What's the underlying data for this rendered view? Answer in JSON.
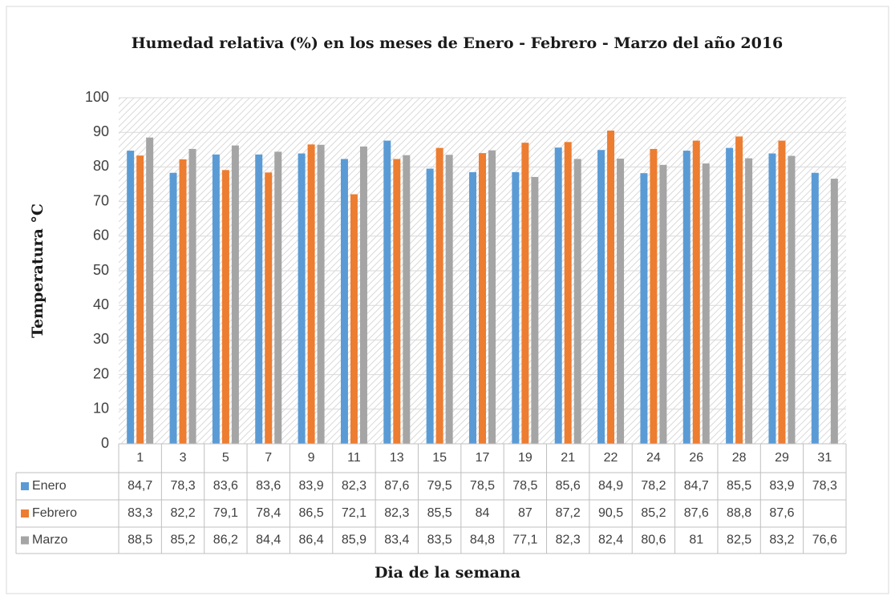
{
  "chart_data": {
    "type": "bar",
    "title": "Humedad relativa (%) en los meses de Enero - Febrero - Marzo del año 2016",
    "y_label": "Temperatura °C",
    "x_label": "Dia de la semana",
    "categories": [
      "1",
      "3",
      "5",
      "7",
      "9",
      "11",
      "13",
      "15",
      "17",
      "19",
      "21",
      "22",
      "24",
      "26",
      "28",
      "29",
      "31"
    ],
    "series": [
      {
        "name": "Enero",
        "color": "#5b9bd5",
        "values": [
          84.7,
          78.3,
          83.6,
          83.6,
          83.9,
          82.3,
          87.6,
          79.5,
          78.5,
          78.5,
          85.6,
          84.9,
          78.2,
          84.7,
          85.5,
          83.9,
          78.3
        ],
        "value_labels": [
          "84,7",
          "78,3",
          "83,6",
          "83,6",
          "83,9",
          "82,3",
          "87,6",
          "79,5",
          "78,5",
          "78,5",
          "85,6",
          "84,9",
          "78,2",
          "84,7",
          "85,5",
          "83,9",
          "78,3"
        ]
      },
      {
        "name": "Febrero",
        "color": "#ed7d31",
        "values": [
          83.3,
          82.2,
          79.1,
          78.4,
          86.5,
          72.1,
          82.3,
          85.5,
          84,
          87,
          87.2,
          90.5,
          85.2,
          87.6,
          88.8,
          87.6,
          null
        ],
        "value_labels": [
          "83,3",
          "82,2",
          "79,1",
          "78,4",
          "86,5",
          "72,1",
          "82,3",
          "85,5",
          "84",
          "87",
          "87,2",
          "90,5",
          "85,2",
          "87,6",
          "88,8",
          "87,6",
          null
        ]
      },
      {
        "name": "Marzo",
        "color": "#a5a5a5",
        "values": [
          88.5,
          85.2,
          86.2,
          84.4,
          86.4,
          85.9,
          83.4,
          83.5,
          84.8,
          77.1,
          82.3,
          82.4,
          80.6,
          81,
          82.5,
          83.2,
          76.6
        ],
        "value_labels": [
          "88,5",
          "85,2",
          "86,2",
          "84,4",
          "86,4",
          "85,9",
          "83,4",
          "83,5",
          "84,8",
          "77,1",
          "82,3",
          "82,4",
          "80,6",
          "81",
          "82,5",
          "83,2",
          "76,6"
        ]
      }
    ],
    "ylim": [
      0,
      100
    ],
    "yticks": [
      0,
      10,
      20,
      30,
      40,
      50,
      60,
      70,
      80,
      90,
      100
    ],
    "grid": true
  }
}
